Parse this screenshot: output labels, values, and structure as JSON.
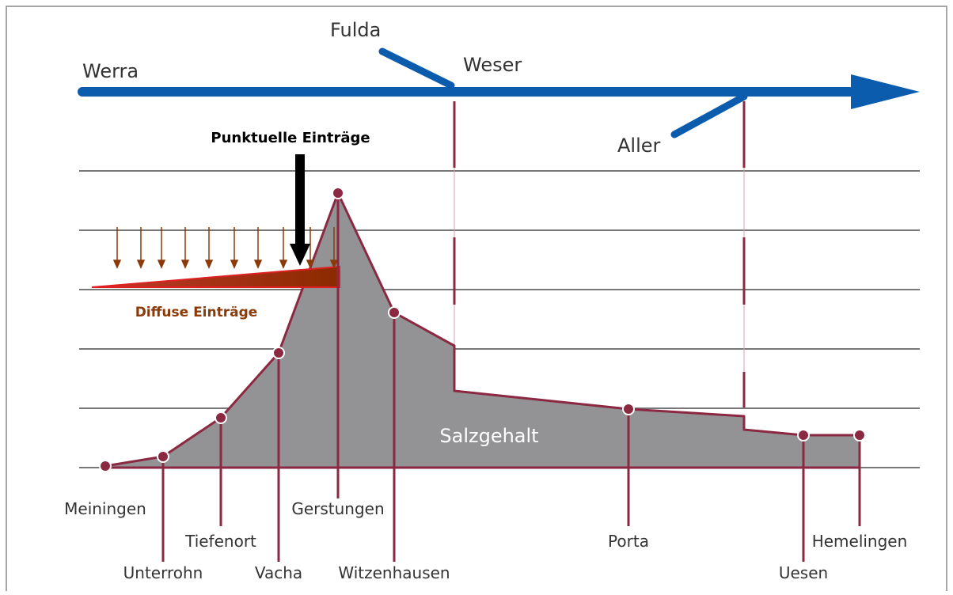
{
  "rivers": {
    "werra": "Werra",
    "fulda": "Fulda",
    "weser": "Weser",
    "aller": "Aller"
  },
  "annotations": {
    "point": "Punktuelle Einträge",
    "diffuse": "Diffuse Einträge",
    "area": "Salzgehalt"
  },
  "stations": [
    "Meiningen",
    "Unterrohn",
    "Tiefenort",
    "Vacha",
    "Gerstungen",
    "Witzenhausen",
    "Porta",
    "Uesen",
    "Hemelingen"
  ]
}
